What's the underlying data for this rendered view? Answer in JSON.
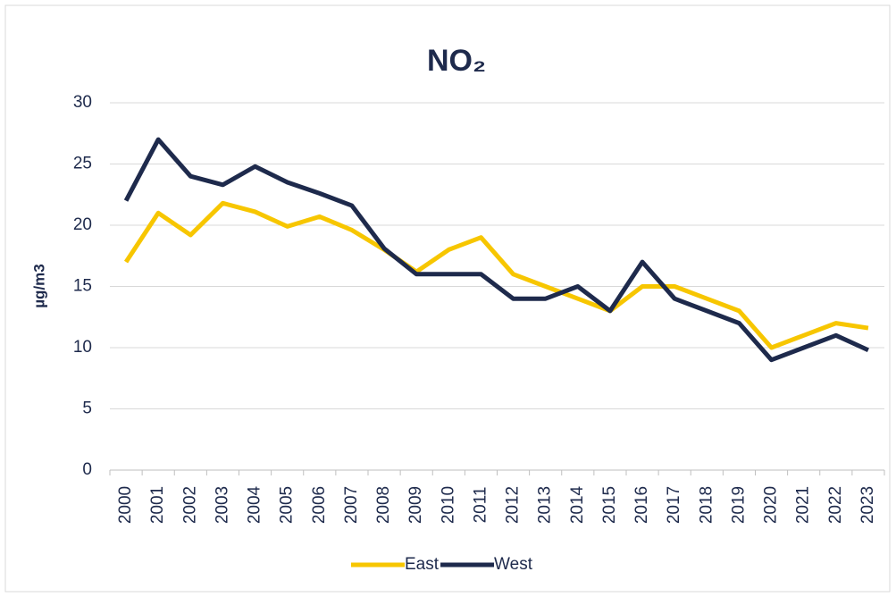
{
  "chart_data": {
    "type": "line",
    "title": "NO₂",
    "y_label": "µg/m3",
    "categories": [
      "2000",
      "2001",
      "2002",
      "2003",
      "2004",
      "2005",
      "2006",
      "2007",
      "2008",
      "2009",
      "2010",
      "2011",
      "2012",
      "2013",
      "2014",
      "2015",
      "2016",
      "2017",
      "2018",
      "2019",
      "2020",
      "2021",
      "2022",
      "2023"
    ],
    "series": [
      {
        "name": "East",
        "color": "#f7c600",
        "values": [
          17,
          21,
          19.2,
          21.8,
          21.1,
          19.9,
          20.7,
          19.6,
          18,
          16.2,
          18,
          19,
          16,
          15,
          14,
          13,
          15,
          15,
          14,
          13,
          10,
          11,
          12,
          11.6
        ]
      },
      {
        "name": "West",
        "color": "#1e2a4c",
        "values": [
          22,
          27,
          24,
          23.3,
          24.8,
          23.5,
          22.6,
          21.6,
          18.1,
          16,
          16,
          16,
          14,
          14,
          15,
          13,
          17,
          14,
          13,
          12,
          9,
          10,
          11,
          9.8
        ]
      }
    ],
    "ylim": [
      0,
      30
    ],
    "yticks": [
      0,
      5,
      10,
      15,
      20,
      25,
      30
    ],
    "grid": true,
    "legend": "bottom"
  }
}
